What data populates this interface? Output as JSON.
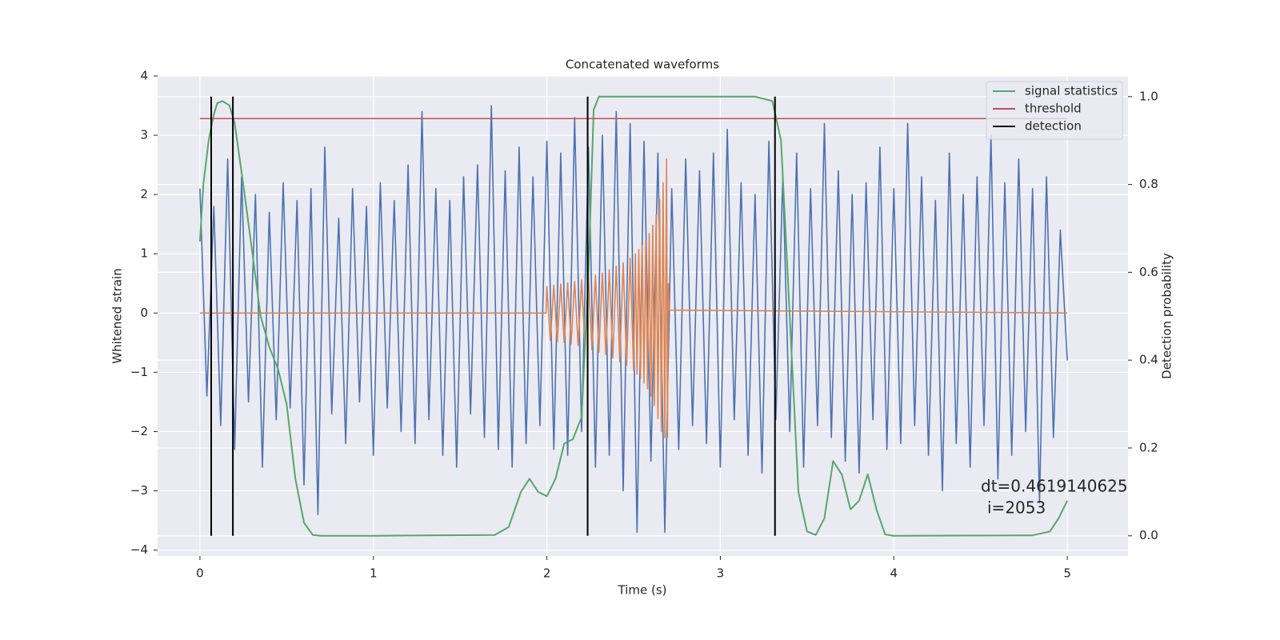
{
  "chart_data": {
    "type": "line",
    "title": "Concatenated waveforms",
    "xlabel": "Time (s)",
    "ylabel": "Whitened strain",
    "y2label": "Detection probability",
    "xlim": [
      -0.244,
      5.35
    ],
    "ylim": [
      -4.1,
      4.0
    ],
    "y2lim": [
      -0.046,
      1.047
    ],
    "xticks": [
      0,
      1,
      2,
      3,
      4,
      5
    ],
    "yticks": [
      {
        "value": -4,
        "label": "−4"
      },
      {
        "value": -3,
        "label": "−3"
      },
      {
        "value": -2,
        "label": "−2"
      },
      {
        "value": -1,
        "label": "−1"
      },
      0,
      1,
      2,
      3,
      4
    ],
    "y2ticks": [
      {
        "value": 0,
        "label": "0.0"
      },
      0.2,
      0.4,
      0.6,
      0.8,
      {
        "value": 1,
        "label": "1.0"
      }
    ],
    "grid": true,
    "background": "#eaeaf2",
    "legend_loc": "upper right",
    "annotations": [
      "dt=0.4619140625",
      "i=2053"
    ],
    "series": [
      {
        "kind": "line",
        "color": "#4c72b0",
        "axis": "y",
        "x": [
          0,
          0.04,
          0.08,
          0.12,
          0.16,
          0.2,
          0.24,
          0.28,
          0.32,
          0.36,
          0.4,
          0.44,
          0.48,
          0.52,
          0.56,
          0.6,
          0.64,
          0.68,
          0.72,
          0.76,
          0.8,
          0.84,
          0.88,
          0.92,
          0.96,
          1,
          1.04,
          1.08,
          1.12,
          1.16,
          1.2,
          1.24,
          1.28,
          1.32,
          1.36,
          1.4,
          1.44,
          1.48,
          1.52,
          1.56,
          1.6,
          1.64,
          1.68,
          1.72,
          1.76,
          1.8,
          1.84,
          1.88,
          1.92,
          1.96,
          2,
          2.04,
          2.08,
          2.12,
          2.16,
          2.2,
          2.24,
          2.28,
          2.32,
          2.36,
          2.4,
          2.44,
          2.48,
          2.52,
          2.56,
          2.6,
          2.64,
          2.68,
          2.72,
          2.76,
          2.8,
          2.84,
          2.88,
          2.92,
          2.96,
          3,
          3.04,
          3.08,
          3.12,
          3.16,
          3.2,
          3.24,
          3.28,
          3.32,
          3.36,
          3.4,
          3.44,
          3.48,
          3.52,
          3.56,
          3.6,
          3.64,
          3.68,
          3.72,
          3.76,
          3.8,
          3.84,
          3.88,
          3.92,
          3.96,
          4,
          4.04,
          4.08,
          4.12,
          4.16,
          4.2,
          4.24,
          4.28,
          4.32,
          4.36,
          4.4,
          4.44,
          4.48,
          4.52,
          4.56,
          4.6,
          4.64,
          4.68,
          4.72,
          4.76,
          4.8,
          4.84,
          4.88,
          4.92,
          4.96,
          5
        ],
        "values": [
          2.1,
          -1.4,
          1.8,
          -1.9,
          2.6,
          -2.3,
          2.3,
          -1.5,
          2.0,
          -2.6,
          1.7,
          -1.8,
          2.2,
          -1.6,
          1.9,
          -2.9,
          2.1,
          -3.4,
          2.8,
          -1.7,
          1.6,
          -2.2,
          2.1,
          -1.5,
          1.8,
          -2.4,
          2.2,
          -1.6,
          1.9,
          -2.0,
          2.5,
          -2.2,
          3.4,
          -1.8,
          2.1,
          -2.4,
          1.9,
          -2.6,
          2.3,
          -1.7,
          2.5,
          -2.1,
          3.5,
          -2.3,
          2.4,
          -2.6,
          2.8,
          -2.2,
          2.3,
          -1.9,
          2.9,
          -2.3,
          2.7,
          -2.4,
          3.3,
          -2.0,
          2.8,
          -2.6,
          3.0,
          -2.4,
          3.4,
          -3.0,
          3.2,
          -3.7,
          2.9,
          -2.5,
          2.7,
          -3.7,
          2.1,
          -2.3,
          2.6,
          -1.9,
          2.4,
          -2.2,
          2.7,
          -2.6,
          3.1,
          -1.8,
          2.2,
          -2.4,
          2.0,
          -2.7,
          2.9,
          -1.8,
          2.3,
          -2.0,
          2.7,
          -2.6,
          2.1,
          -1.9,
          3.2,
          -2.1,
          2.4,
          -2.5,
          2.0,
          -2.7,
          2.2,
          -1.8,
          2.8,
          -2.3,
          2.1,
          -2.2,
          3.2,
          -1.9,
          2.3,
          -2.4,
          1.9,
          -3.0,
          2.7,
          -2.2,
          2.0,
          -2.6,
          2.3,
          -1.9,
          3.0,
          -2.8,
          2.2,
          -2.4,
          2.6,
          -2.0,
          2.1,
          -3.2,
          2.3,
          -2.1,
          1.4,
          -0.8
        ]
      },
      {
        "kind": "line",
        "color": "#dd8452",
        "axis": "y",
        "x": [
          0,
          1.995,
          2,
          2.02,
          2.04,
          2.06,
          2.08,
          2.1,
          2.12,
          2.14,
          2.16,
          2.18,
          2.2,
          2.22,
          2.24,
          2.26,
          2.28,
          2.3,
          2.32,
          2.34,
          2.36,
          2.38,
          2.4,
          2.42,
          2.44,
          2.46,
          2.48,
          2.5,
          2.51,
          2.52,
          2.53,
          2.54,
          2.55,
          2.56,
          2.57,
          2.58,
          2.59,
          2.6,
          2.61,
          2.62,
          2.63,
          2.64,
          2.65,
          2.66,
          2.67,
          2.68,
          2.69,
          2.695,
          2.7,
          2.705,
          5
        ],
        "values": [
          0,
          0,
          0.45,
          -0.46,
          0.47,
          -0.48,
          0.49,
          -0.5,
          0.51,
          -0.52,
          0.53,
          -0.55,
          0.56,
          -0.58,
          0.6,
          -0.62,
          0.64,
          -0.66,
          0.68,
          -0.7,
          0.73,
          -0.76,
          0.79,
          -0.82,
          0.85,
          -0.88,
          0.92,
          -0.96,
          1.0,
          -1.03,
          1.07,
          -1.1,
          1.14,
          -1.18,
          1.23,
          -1.28,
          1.34,
          -1.4,
          1.48,
          -1.56,
          1.66,
          -1.78,
          1.92,
          -2.0,
          2.2,
          -2.1,
          2.6,
          -2.1,
          0.5,
          0.05,
          0
        ]
      },
      {
        "kind": "line",
        "name": "signal statistics",
        "color": "#55a868",
        "axis": "y2",
        "x": [
          0,
          0.02,
          0.05,
          0.08,
          0.1,
          0.13,
          0.17,
          0.2,
          0.25,
          0.3,
          0.35,
          0.4,
          0.45,
          0.5,
          0.55,
          0.6,
          0.65,
          0.7,
          1,
          1.7,
          1.78,
          1.85,
          1.9,
          1.95,
          2,
          2.05,
          2.1,
          2.15,
          2.2,
          2.24,
          2.27,
          2.3,
          3.2,
          3.3,
          3.35,
          3.4,
          3.45,
          3.5,
          3.55,
          3.6,
          3.65,
          3.7,
          3.75,
          3.8,
          3.85,
          3.9,
          3.95,
          4,
          4.8,
          4.9,
          4.95,
          5
        ],
        "values": [
          0.67,
          0.8,
          0.9,
          0.96,
          0.985,
          0.99,
          0.98,
          0.94,
          0.8,
          0.65,
          0.5,
          0.43,
          0.38,
          0.3,
          0.13,
          0.03,
          0.002,
          0,
          0,
          0.002,
          0.02,
          0.1,
          0.13,
          0.1,
          0.09,
          0.13,
          0.21,
          0.22,
          0.27,
          0.6,
          0.97,
          1,
          1,
          0.99,
          0.9,
          0.5,
          0.1,
          0.01,
          0.002,
          0.04,
          0.17,
          0.14,
          0.06,
          0.08,
          0.14,
          0.06,
          0.003,
          0,
          0.001,
          0.01,
          0.04,
          0.08
        ]
      },
      {
        "kind": "hline",
        "name": "threshold",
        "color": "#c44e52",
        "axis": "y2",
        "value": 0.95,
        "xrange": [
          0,
          5
        ]
      },
      {
        "kind": "vlines",
        "name": "detection",
        "color": "#000000",
        "axis": "y2",
        "x": [
          0.065,
          0.19,
          2.235,
          3.315
        ],
        "yrange": [
          0,
          1
        ]
      }
    ]
  }
}
